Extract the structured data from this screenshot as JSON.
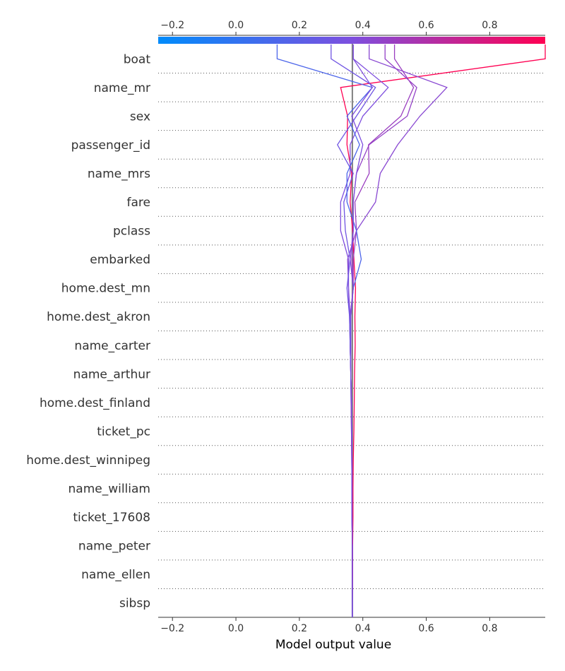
{
  "chart_data": {
    "type": "line",
    "title": "",
    "xlabel": "Model output value",
    "ylabel": "",
    "xlim": [
      -0.245,
      0.975
    ],
    "xticks": [
      -0.2,
      0.0,
      0.2,
      0.4,
      0.6,
      0.8
    ],
    "xtick_labels": [
      "−0.2",
      "0.0",
      "0.2",
      "0.4",
      "0.6",
      "0.8"
    ],
    "base_value": 0.367,
    "colorbar": {
      "range": [
        -0.245,
        0.975
      ],
      "colors": [
        "#008bfb",
        "#7d4fdf",
        "#ff0052"
      ]
    },
    "features": [
      "sibsp",
      "name_ellen",
      "name_peter",
      "ticket_17608",
      "name_william",
      "home.dest_winnipeg",
      "ticket_pc",
      "home.dest_finland",
      "name_arthur",
      "name_carter",
      "home.dest_akron",
      "home.dest_mn",
      "embarked",
      "pclass",
      "fare",
      "name_mrs",
      "passenger_id",
      "sex",
      "name_mr",
      "boat"
    ],
    "series": [
      {
        "values": [
          0.367,
          0.368,
          0.368,
          0.369,
          0.369,
          0.37,
          0.372,
          0.373,
          0.374,
          0.376,
          0.375,
          0.377,
          0.372,
          0.368,
          0.36,
          0.365,
          0.35,
          0.352,
          0.33,
          0.975
        ]
      },
      {
        "values": [
          0.367,
          0.367,
          0.367,
          0.366,
          0.366,
          0.366,
          0.365,
          0.364,
          0.362,
          0.36,
          0.358,
          0.355,
          0.352,
          0.38,
          0.44,
          0.455,
          0.51,
          0.58,
          0.665,
          0.42
        ]
      },
      {
        "values": [
          0.367,
          0.367,
          0.367,
          0.366,
          0.366,
          0.365,
          0.364,
          0.363,
          0.362,
          0.36,
          0.36,
          0.37,
          0.365,
          0.37,
          0.37,
          0.38,
          0.42,
          0.54,
          0.57,
          0.47
        ]
      },
      {
        "values": [
          0.367,
          0.367,
          0.367,
          0.366,
          0.366,
          0.365,
          0.364,
          0.363,
          0.362,
          0.36,
          0.36,
          0.37,
          0.37,
          0.38,
          0.375,
          0.42,
          0.418,
          0.52,
          0.56,
          0.5
        ]
      },
      {
        "values": [
          0.367,
          0.367,
          0.367,
          0.366,
          0.366,
          0.366,
          0.365,
          0.364,
          0.362,
          0.36,
          0.36,
          0.355,
          0.355,
          0.33,
          0.33,
          0.36,
          0.36,
          0.4,
          0.48,
          0.37
        ]
      },
      {
        "values": [
          0.367,
          0.367,
          0.367,
          0.366,
          0.366,
          0.366,
          0.365,
          0.364,
          0.362,
          0.36,
          0.358,
          0.35,
          0.36,
          0.345,
          0.34,
          0.37,
          0.32,
          0.38,
          0.44,
          0.3
        ]
      },
      {
        "values": [
          0.367,
          0.367,
          0.367,
          0.366,
          0.366,
          0.366,
          0.365,
          0.364,
          0.362,
          0.362,
          0.362,
          0.37,
          0.395,
          0.38,
          0.35,
          0.35,
          0.39,
          0.35,
          0.43,
          0.13
        ]
      },
      {
        "values": [
          0.367,
          0.367,
          0.367,
          0.366,
          0.366,
          0.366,
          0.365,
          0.364,
          0.362,
          0.362,
          0.362,
          0.37,
          0.36,
          0.37,
          0.37,
          0.38,
          0.4,
          0.365,
          0.43,
          0.37
        ]
      }
    ]
  }
}
